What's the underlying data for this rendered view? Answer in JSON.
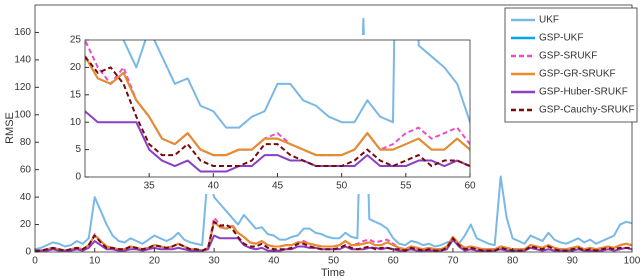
{
  "chart_data": {
    "type": "line",
    "x_label": "Time",
    "y_label": "RMSE",
    "x": [
      0,
      1,
      2,
      3,
      4,
      5,
      6,
      7,
      8,
      9,
      10,
      11,
      12,
      13,
      14,
      15,
      16,
      17,
      18,
      19,
      20,
      21,
      22,
      23,
      24,
      25,
      26,
      27,
      28,
      29,
      30,
      31,
      32,
      33,
      34,
      35,
      36,
      37,
      38,
      39,
      40,
      41,
      42,
      43,
      44,
      45,
      46,
      47,
      48,
      49,
      50,
      51,
      52,
      53,
      54,
      55,
      56,
      57,
      58,
      59,
      60,
      61,
      62,
      63,
      64,
      65,
      66,
      67,
      68,
      69,
      70,
      71,
      72,
      73,
      74,
      75,
      76,
      77,
      78,
      79,
      80,
      81,
      82,
      83,
      84,
      85,
      86,
      87,
      88,
      89,
      90,
      91,
      92,
      93,
      94,
      95,
      96,
      97,
      98,
      99,
      100
    ],
    "xlim": [
      0,
      100
    ],
    "xticks": [
      0,
      10,
      20,
      30,
      40,
      50,
      60,
      70,
      80,
      90,
      100
    ],
    "ylim": [
      0,
      180
    ],
    "yticks": [
      0,
      20,
      40,
      60,
      80,
      100,
      120,
      140,
      160
    ],
    "legend": "upper right",
    "series": [
      {
        "name": "UKF",
        "color": "#7ab8e6",
        "dashed": false,
        "values": [
          2,
          3,
          5,
          7,
          6,
          4,
          5,
          8,
          6,
          10,
          40,
          30,
          20,
          12,
          8,
          7,
          10,
          8,
          6,
          9,
          12,
          10,
          8,
          10,
          14,
          9,
          7,
          6,
          5,
          60,
          40,
          35,
          30,
          25,
          20,
          27,
          22,
          17,
          18,
          13,
          12,
          9,
          9,
          11,
          12,
          17,
          17,
          14,
          13,
          11,
          10,
          10,
          14,
          11,
          10,
          170,
          24,
          22,
          20,
          17,
          10,
          6,
          5,
          8,
          7,
          5,
          6,
          4,
          5,
          7,
          8,
          6,
          12,
          20,
          10,
          8,
          6,
          5,
          55,
          25,
          10,
          8,
          6,
          12,
          10,
          8,
          14,
          9,
          7,
          6,
          8,
          10,
          7,
          9,
          6,
          8,
          10,
          12,
          20,
          22,
          21
        ]
      },
      {
        "name": "GSP-UKF",
        "color": "#00a8e8",
        "dashed": false,
        "values": [
          1,
          1,
          2,
          3,
          2,
          1,
          2,
          3,
          2,
          5,
          12,
          8,
          4,
          3,
          2,
          2,
          4,
          3,
          2,
          3,
          5,
          4,
          3,
          4,
          6,
          4,
          2,
          2,
          1,
          3,
          22,
          18,
          17,
          19,
          14,
          11,
          7,
          6,
          8,
          5,
          4,
          4,
          5,
          5,
          7,
          7,
          6,
          5,
          4,
          4,
          4,
          5,
          8,
          5,
          5,
          6,
          7,
          5,
          5,
          7,
          5,
          3,
          2,
          4,
          3,
          2,
          3,
          2,
          2,
          4,
          11,
          6,
          3,
          4,
          3,
          2,
          2,
          2,
          4,
          3,
          2,
          2,
          2,
          5,
          4,
          3,
          5,
          3,
          2,
          2,
          3,
          4,
          2,
          3,
          2,
          3,
          4,
          3,
          5,
          6,
          5
        ]
      },
      {
        "name": "GSP-SRUKF",
        "color": "#e84fc8",
        "dashed": true,
        "values": [
          1,
          1,
          2,
          3,
          2,
          1,
          2,
          3,
          2,
          5,
          13,
          8,
          4,
          3,
          2,
          2,
          4,
          3,
          2,
          3,
          5,
          4,
          3,
          4,
          6,
          4,
          2,
          2,
          1,
          3,
          25,
          20,
          17,
          20,
          14,
          11,
          7,
          6,
          8,
          5,
          4,
          4,
          5,
          5,
          7,
          8,
          6,
          5,
          4,
          4,
          4,
          5,
          8,
          5,
          6,
          8,
          9,
          7,
          8,
          9,
          6,
          3,
          2,
          4,
          3,
          2,
          3,
          2,
          2,
          4,
          11,
          6,
          3,
          4,
          3,
          2,
          2,
          2,
          4,
          3,
          2,
          2,
          2,
          5,
          4,
          3,
          5,
          3,
          2,
          2,
          3,
          4,
          2,
          3,
          2,
          3,
          4,
          3,
          5,
          6,
          5
        ]
      },
      {
        "name": "GSP-GR-SRUKF",
        "color": "#f08a24",
        "dashed": false,
        "values": [
          1,
          1,
          2,
          3,
          2,
          1,
          2,
          3,
          2,
          5,
          12,
          8,
          4,
          3,
          2,
          2,
          4,
          3,
          2,
          3,
          5,
          4,
          3,
          4,
          6,
          4,
          2,
          2,
          1,
          3,
          22,
          18,
          17,
          19,
          14,
          11,
          7,
          6,
          8,
          5,
          4,
          4,
          5,
          5,
          7,
          7,
          6,
          5,
          4,
          4,
          4,
          5,
          8,
          5,
          5,
          6,
          7,
          5,
          5,
          7,
          5,
          3,
          2,
          4,
          3,
          2,
          3,
          2,
          2,
          4,
          11,
          6,
          3,
          4,
          3,
          2,
          2,
          2,
          4,
          3,
          2,
          2,
          2,
          5,
          4,
          3,
          5,
          3,
          2,
          2,
          3,
          4,
          2,
          3,
          2,
          3,
          4,
          3,
          5,
          6,
          5
        ]
      },
      {
        "name": "GSP-Huber-SRUKF",
        "color": "#8a3fc4",
        "dashed": false,
        "values": [
          1,
          1,
          1,
          2,
          1,
          1,
          1,
          2,
          1,
          3,
          8,
          5,
          2,
          2,
          1,
          1,
          2,
          2,
          1,
          2,
          3,
          2,
          2,
          2,
          3,
          2,
          1,
          1,
          1,
          2,
          12,
          10,
          10,
          10,
          10,
          5,
          3,
          2,
          3,
          1,
          1,
          1,
          2,
          2,
          4,
          4,
          3,
          3,
          2,
          2,
          2,
          2,
          4,
          2,
          2,
          2,
          3,
          3,
          2,
          3,
          2,
          1,
          1,
          2,
          1,
          1,
          1,
          1,
          1,
          2,
          9,
          4,
          1,
          2,
          1,
          1,
          1,
          1,
          2,
          1,
          1,
          1,
          1,
          3,
          2,
          1,
          2,
          1,
          1,
          1,
          1,
          2,
          1,
          1,
          1,
          1,
          2,
          1,
          2,
          3,
          2
        ]
      },
      {
        "name": "GSP-Cauchy-SRUKF",
        "color": "#7a0a0a",
        "dashed": true,
        "values": [
          1,
          1,
          2,
          3,
          2,
          1,
          2,
          3,
          2,
          5,
          12,
          7,
          3,
          3,
          2,
          2,
          4,
          3,
          2,
          3,
          5,
          4,
          3,
          4,
          6,
          4,
          2,
          2,
          1,
          3,
          22,
          19,
          20,
          17,
          11,
          6,
          4,
          4,
          6,
          3,
          2,
          2,
          2,
          3,
          6,
          6,
          4,
          3,
          2,
          2,
          2,
          3,
          5,
          3,
          2,
          3,
          4,
          2,
          3,
          3,
          2,
          2,
          1,
          3,
          2,
          1,
          2,
          1,
          1,
          3,
          10,
          5,
          2,
          3,
          2,
          1,
          1,
          1,
          3,
          2,
          1,
          1,
          1,
          4,
          3,
          2,
          4,
          2,
          1,
          1,
          2,
          3,
          1,
          2,
          1,
          2,
          3,
          2,
          3,
          3,
          3
        ]
      }
    ],
    "inset": {
      "xlim": [
        30,
        60
      ],
      "xticks": [
        35,
        40,
        45,
        50,
        55,
        60
      ],
      "ylim": [
        0,
        25
      ],
      "yticks": [
        0,
        5,
        10,
        15,
        20,
        25
      ]
    }
  }
}
